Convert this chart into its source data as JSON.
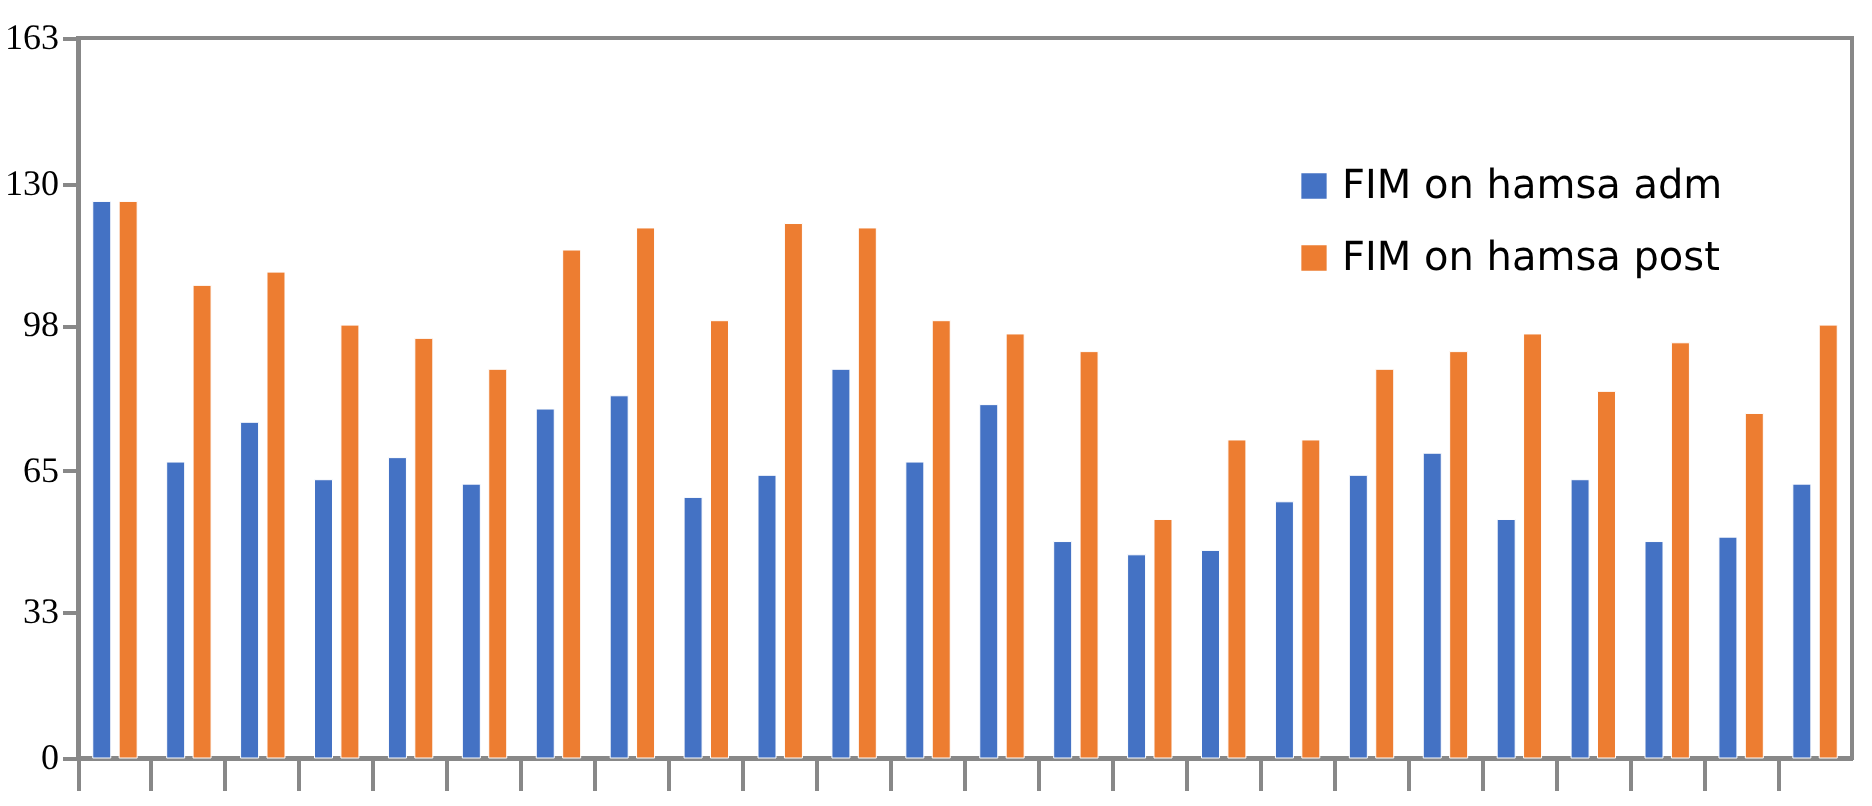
{
  "chart_data": {
    "type": "bar",
    "categories": [
      null,
      null,
      null,
      null,
      null,
      null,
      null,
      null,
      null,
      null,
      null,
      null,
      null,
      null,
      null,
      null,
      null,
      null,
      null,
      null,
      null,
      null,
      null,
      null
    ],
    "series": [
      {
        "name": "FIM on hamsa adm",
        "color": "#4472c4",
        "values": [
          126,
          67,
          76,
          63,
          68,
          62,
          79,
          82,
          59,
          64,
          88,
          67,
          80,
          49,
          46,
          47,
          58,
          64,
          69,
          54,
          63,
          49,
          50,
          62
        ]
      },
      {
        "name": "FIM on hamsa post",
        "color": "#ed7d31",
        "values": [
          126,
          107,
          110,
          98,
          95,
          88,
          115,
          120,
          99,
          121,
          120,
          99,
          96,
          92,
          54,
          72,
          72,
          88,
          92,
          96,
          83,
          94,
          78,
          98
        ]
      }
    ],
    "ylim": [
      0,
      163
    ],
    "yticks": [
      0,
      33,
      65,
      98,
      130,
      163
    ],
    "grid": false,
    "legend": "top right",
    "tick_labels": "y"
  }
}
